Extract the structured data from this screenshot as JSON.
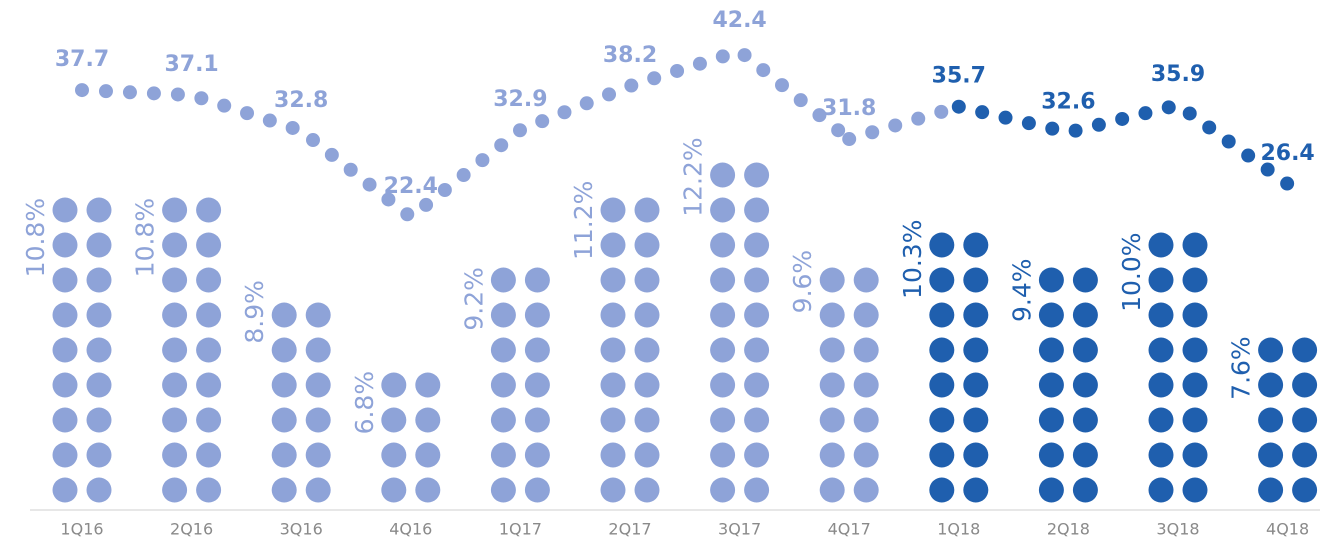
{
  "chart_data": {
    "type": "dot-bar-line",
    "categories": [
      "1Q16",
      "2Q16",
      "3Q16",
      "4Q16",
      "1Q17",
      "2Q17",
      "3Q17",
      "4Q17",
      "1Q18",
      "2Q18",
      "3Q18",
      "4Q18"
    ],
    "colors": [
      "#8ea3d8",
      "#8ea3d8",
      "#8ea3d8",
      "#8ea3d8",
      "#8ea3d8",
      "#8ea3d8",
      "#8ea3d8",
      "#8ea3d8",
      "#1f5fae",
      "#1f5fae",
      "#1f5fae",
      "#1f5fae"
    ],
    "bars": {
      "values": [
        10.8,
        10.8,
        8.9,
        6.8,
        9.2,
        11.2,
        12.2,
        9.6,
        10.3,
        9.4,
        10.0,
        7.6
      ],
      "value_labels": [
        "10.8%",
        "10.8%",
        "8.9%",
        "6.8%",
        "9.2%",
        "11.2%",
        "12.2%",
        "9.6%",
        "10.3%",
        "9.4%",
        "10.0%",
        "7.6%"
      ]
    },
    "line": {
      "values": [
        37.7,
        37.1,
        32.8,
        22.4,
        32.9,
        38.2,
        42.4,
        31.8,
        35.7,
        32.6,
        35.9,
        26.4
      ]
    }
  }
}
